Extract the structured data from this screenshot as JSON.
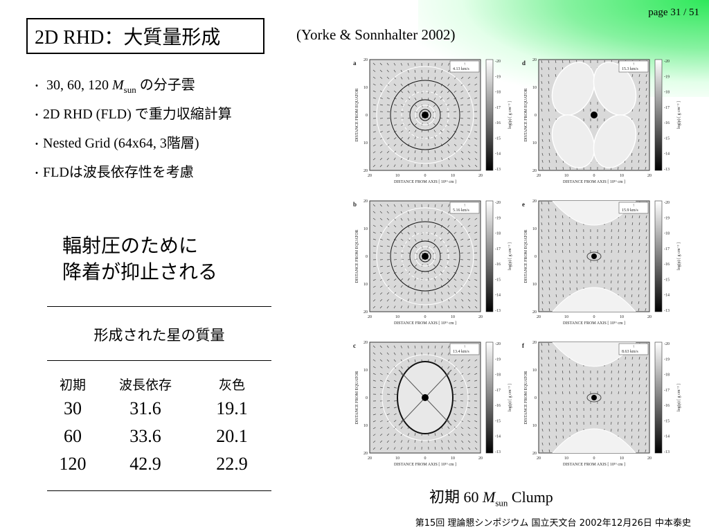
{
  "page_number": "page 31 / 51",
  "title": "2D RHD：大質量形成",
  "citation": "(Yorke & Sonnhalter 2002)",
  "bullets": [
    {
      "pre": "30, 60, 120 ",
      "m": "M",
      "sub": "sun",
      "post": " の分子雲"
    },
    {
      "text": "2D RHD (FLD) で重力収縮計算"
    },
    {
      "text": "Nested Grid (64x64, 3階層)"
    },
    {
      "text": "FLDは波長依存性を考慮"
    }
  ],
  "callout": {
    "line1": "輻射圧のために",
    "line2": "降着が抑止される"
  },
  "table": {
    "caption": "形成された星の質量",
    "headers": [
      "初期",
      "波長依存",
      "灰色"
    ],
    "rows": [
      [
        "30",
        "31.6",
        "19.1"
      ],
      [
        "60",
        "33.6",
        "20.1"
      ],
      [
        "120",
        "42.9",
        "22.9"
      ]
    ]
  },
  "figure": {
    "axis_x_label": "DISTANCE FROM AXIS",
    "axis_x_unit": "[ 10¹⁶ cm ]",
    "axis_y_label": "DISTANCE FROM EQUATOR",
    "colorbar_label": "log(ρ)  [ g cm⁻³ ]",
    "x_ticks": [
      "20",
      "10",
      "0",
      "10",
      "20"
    ],
    "y_ticks": [
      "20",
      "10",
      "0",
      "10",
      "20"
    ],
    "colorbar_ticks": [
      "-20",
      "-19",
      "-18",
      "-17",
      "-16",
      "-15",
      "-14",
      "-13"
    ],
    "panels": [
      {
        "letter": "a",
        "velocity": "4.13 km/s",
        "style": "rings"
      },
      {
        "letter": "d",
        "velocity": "15.3 km/s",
        "style": "lobes"
      },
      {
        "letter": "b",
        "velocity": "5.16 km/s",
        "style": "rings"
      },
      {
        "letter": "e",
        "velocity": "15.9 km/s",
        "style": "jets"
      },
      {
        "letter": "c",
        "velocity": "13.4 km/s",
        "style": "shell"
      },
      {
        "letter": "f",
        "velocity": "8.63 km/s",
        "style": "jets"
      }
    ]
  },
  "figure_caption": {
    "pre": "初期 60 ",
    "m": "M",
    "sub": "sun",
    "post": " Clump"
  },
  "footer": "第15回 理論懇シンポジウム 国立天文台 2002年12月26日 中本泰史",
  "colors": {
    "corner_gradient": "#2ee85a",
    "panel_bg": "#d9d9d9"
  }
}
